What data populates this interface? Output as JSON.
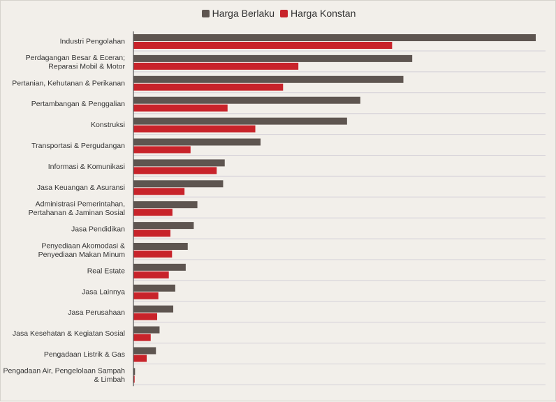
{
  "chart_data": {
    "type": "bar",
    "orientation": "horizontal",
    "categories": [
      "Industri Pengolahan",
      "Perdagangan Besar & Eceran;\nReparasi Mobil & Motor",
      "Pertanian, Kehutanan & Perikanan",
      "Pertambangan & Penggalian",
      "Konstruksi",
      "Transportasi & Pergudangan",
      "Informasi & Komunikasi",
      "Jasa Keuangan & Asuransi",
      "Administrasi Pemerintahan,\nPertahanan & Jaminan Sosial",
      "Jasa Pendidikan",
      "Penyediaan Akomodasi &\nPenyediaan Makan Minum",
      "Real Estate",
      "Jasa Lainnya",
      "Jasa Perusahaan",
      "Jasa Kesehatan & Kegiatan Sosial",
      "Pengadaan Listrik & Gas",
      "Pengadaan Air, Pengelolaan Sampah\n& Limbah"
    ],
    "series": [
      {
        "name": "Harga Berlaku",
        "color": "#5e5550",
        "values": [
          100,
          69.3,
          67.1,
          56.4,
          53.1,
          31.6,
          22.7,
          22.3,
          15.9,
          15.0,
          13.5,
          13.0,
          10.4,
          9.9,
          6.5,
          5.6,
          0.4
        ]
      },
      {
        "name": "Harga Konstan",
        "color": "#c8232a",
        "values": [
          64.3,
          41.0,
          37.2,
          23.4,
          30.3,
          14.2,
          20.7,
          12.7,
          9.7,
          9.2,
          9.6,
          8.8,
          6.2,
          5.9,
          4.3,
          3.3,
          0.3
        ]
      }
    ],
    "xlim": [
      0,
      100
    ],
    "title": "",
    "xlabel": "",
    "ylabel": "",
    "legend_position": "top-center",
    "grid": true
  }
}
